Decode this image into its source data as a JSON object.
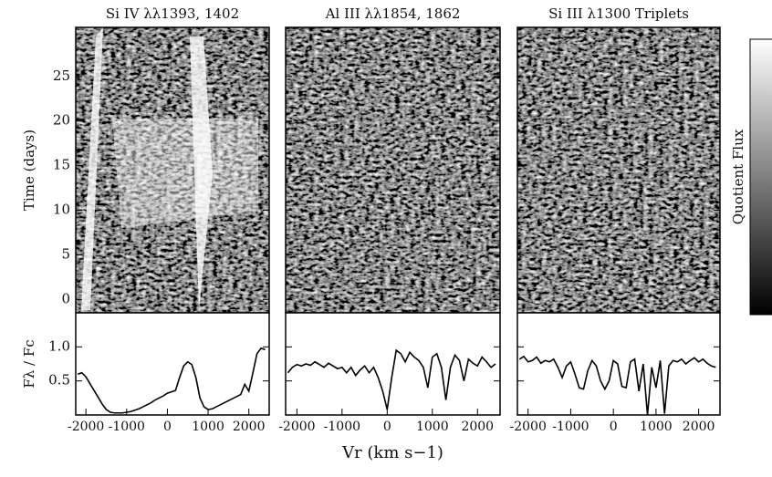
{
  "chart_data": [
    {
      "type": "heatmap",
      "title": "Si IV λλ1393, 1402",
      "ylabel": "Time (days)",
      "ylim": [
        -1.5,
        30.5
      ],
      "yticks": [
        0,
        5,
        10,
        15,
        20,
        25
      ],
      "tick_labels": true
    },
    {
      "type": "heatmap",
      "title": "Al III λλ1854, 1862",
      "ylim": [
        -1.5,
        30.5
      ],
      "yticks": [
        0,
        5,
        10,
        15,
        20,
        25
      ],
      "tick_labels": false
    },
    {
      "type": "heatmap",
      "title": "Si III λ1300 Triplets",
      "ylim": [
        -1.5,
        30.5
      ],
      "yticks": [
        0,
        5,
        10,
        15,
        20,
        25
      ],
      "tick_labels": false
    },
    {
      "type": "line",
      "ylabel": "Fλ / Fc",
      "color": "#000000",
      "tick_labels": true,
      "x": [
        -2200,
        -2100,
        -2000,
        -1900,
        -1800,
        -1700,
        -1600,
        -1500,
        -1400,
        -1300,
        -1200,
        -1100,
        -1000,
        -900,
        -800,
        -700,
        -600,
        -500,
        -400,
        -300,
        -200,
        -100,
        0,
        100,
        200,
        300,
        400,
        500,
        600,
        700,
        800,
        900,
        1000,
        1100,
        1200,
        1300,
        1400,
        1500,
        1600,
        1700,
        1800,
        1900,
        2000,
        2100,
        2200,
        2300,
        2400
      ],
      "values": [
        0.6,
        0.62,
        0.56,
        0.46,
        0.36,
        0.26,
        0.16,
        0.08,
        0.04,
        0.03,
        0.03,
        0.03,
        0.04,
        0.05,
        0.07,
        0.09,
        0.12,
        0.15,
        0.18,
        0.22,
        0.25,
        0.28,
        0.32,
        0.34,
        0.36,
        0.55,
        0.72,
        0.78,
        0.74,
        0.55,
        0.25,
        0.12,
        0.08,
        0.09,
        0.12,
        0.15,
        0.18,
        0.21,
        0.24,
        0.27,
        0.3,
        0.45,
        0.35,
        0.62,
        0.9,
        0.98,
        0.96
      ],
      "xlim": [
        -2250,
        2500
      ],
      "ylim": [
        0,
        1.5
      ],
      "xticks": [
        -2000,
        -1000,
        0,
        1000,
        2000
      ],
      "yticks": [
        0.5,
        {
          "value": 1,
          "label": "1.0"
        }
      ]
    },
    {
      "type": "line",
      "xlabel": "Vr (km s−1)",
      "color": "#000000",
      "tick_labels": false,
      "x": [
        -2200,
        -2100,
        -2000,
        -1900,
        -1800,
        -1700,
        -1600,
        -1500,
        -1400,
        -1300,
        -1200,
        -1100,
        -1000,
        -900,
        -800,
        -700,
        -600,
        -500,
        -400,
        -300,
        -200,
        -100,
        0,
        100,
        200,
        300,
        400,
        500,
        600,
        700,
        800,
        900,
        1000,
        1100,
        1200,
        1300,
        1400,
        1500,
        1600,
        1700,
        1800,
        1900,
        2000,
        2100,
        2200,
        2300,
        2400
      ],
      "values": [
        0.62,
        0.7,
        0.74,
        0.72,
        0.75,
        0.73,
        0.78,
        0.74,
        0.7,
        0.76,
        0.72,
        0.68,
        0.7,
        0.62,
        0.7,
        0.58,
        0.66,
        0.72,
        0.62,
        0.7,
        0.55,
        0.35,
        0.08,
        0.55,
        0.95,
        0.9,
        0.78,
        0.92,
        0.85,
        0.8,
        0.7,
        0.4,
        0.85,
        0.9,
        0.7,
        0.22,
        0.7,
        0.88,
        0.8,
        0.5,
        0.82,
        0.76,
        0.72,
        0.85,
        0.78,
        0.7,
        0.75
      ],
      "xlim": [
        -2250,
        2500
      ],
      "ylim": [
        0,
        1.5
      ],
      "xticks": [
        -2000,
        -1000,
        0,
        1000,
        2000
      ],
      "yticks": [
        0.5,
        {
          "value": 1,
          "label": "1.0"
        }
      ]
    },
    {
      "type": "line",
      "color": "#000000",
      "tick_labels": false,
      "x": [
        -2200,
        -2100,
        -2000,
        -1900,
        -1800,
        -1700,
        -1600,
        -1500,
        -1400,
        -1300,
        -1200,
        -1100,
        -1000,
        -900,
        -800,
        -700,
        -600,
        -500,
        -400,
        -300,
        -200,
        -100,
        0,
        100,
        200,
        300,
        400,
        500,
        600,
        700,
        800,
        900,
        1000,
        1100,
        1200,
        1300,
        1400,
        1500,
        1600,
        1700,
        1800,
        1900,
        2000,
        2100,
        2200,
        2300,
        2400
      ],
      "values": [
        0.82,
        0.86,
        0.78,
        0.8,
        0.85,
        0.76,
        0.8,
        0.78,
        0.82,
        0.7,
        0.55,
        0.72,
        0.78,
        0.6,
        0.4,
        0.38,
        0.65,
        0.8,
        0.72,
        0.5,
        0.38,
        0.5,
        0.8,
        0.75,
        0.42,
        0.4,
        0.78,
        0.82,
        0.35,
        0.75,
        0.0,
        0.7,
        0.4,
        0.8,
        0.02,
        0.72,
        0.8,
        0.78,
        0.82,
        0.75,
        0.8,
        0.84,
        0.78,
        0.82,
        0.76,
        0.72,
        0.7
      ],
      "xlim": [
        -2250,
        2500
      ],
      "ylim": [
        0,
        1.5
      ],
      "xticks": [
        -2000,
        -1000,
        0,
        1000,
        2000
      ],
      "yticks": [
        0.5,
        {
          "value": 1,
          "label": "1.0"
        }
      ]
    },
    {
      "type": "colorbar",
      "label": "Quotient Flux"
    }
  ]
}
